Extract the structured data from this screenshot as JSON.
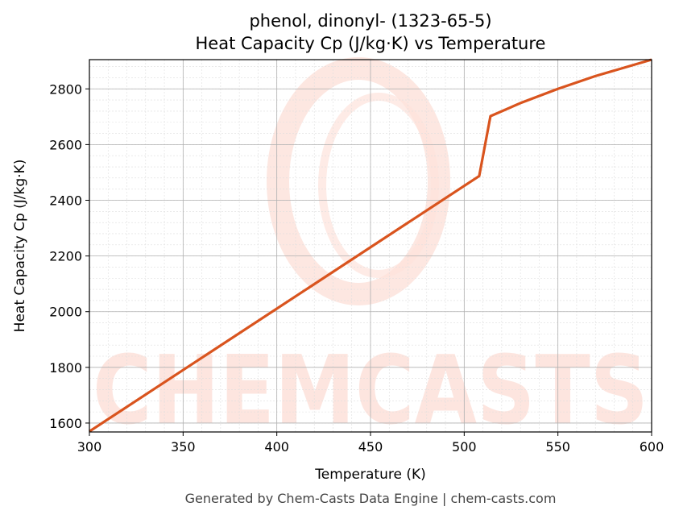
{
  "chart_data": {
    "type": "line",
    "title": "phenol, dinonyl- (1323-65-5)",
    "subtitle": "Heat Capacity Cp (J/kg·K) vs Temperature",
    "xlabel": "Temperature (K)",
    "ylabel": "Heat Capacity Cp (J/kg·K)",
    "xlim": [
      300,
      600
    ],
    "ylim": [
      1568,
      2905
    ],
    "x_ticks": [
      300,
      350,
      400,
      450,
      500,
      550,
      600
    ],
    "y_ticks": [
      1600,
      1800,
      2000,
      2200,
      2400,
      2600,
      2800
    ],
    "grid": true,
    "series": [
      {
        "color": "#d9541e",
        "x": [
          300,
          508,
          514,
          530,
          550,
          570,
          600
        ],
        "y": [
          1570,
          2487,
          2702,
          2749,
          2800,
          2846,
          2905
        ]
      }
    ]
  },
  "watermark": {
    "text": "CHEMCASTS",
    "color": "#fde3dc"
  },
  "footer": "Generated by Chem-Casts Data Engine | chem-casts.com"
}
